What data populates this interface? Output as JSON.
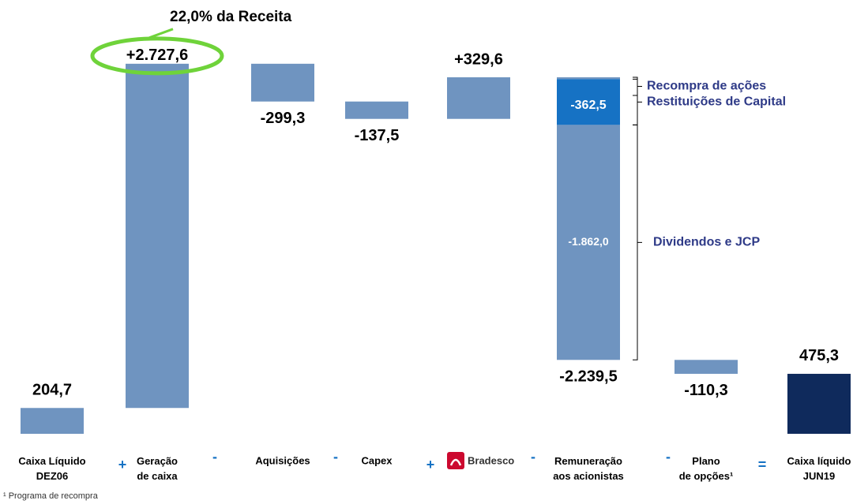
{
  "chart_data": {
    "type": "waterfall",
    "annotation": "22,0% da Receita",
    "footnote": "¹ Programa de recompra",
    "bars": [
      {
        "label": [
          "Caixa Líquido",
          "DEZ06"
        ],
        "operator": null,
        "value": 204.7,
        "value_label": "204,7",
        "color": "#6f94c0"
      },
      {
        "label": [
          "Geração",
          "de caixa"
        ],
        "operator": "+",
        "value": 2727.6,
        "value_label": "+2.727,6",
        "color": "#6f94c0"
      },
      {
        "label": [
          "Aquisições"
        ],
        "operator": "-",
        "value": -299.3,
        "value_label": "-299,3",
        "color": "#6f94c0"
      },
      {
        "label": [
          "Capex"
        ],
        "operator": "-",
        "value": -137.5,
        "value_label": "-137,5",
        "color": "#6f94c0"
      },
      {
        "label": [
          "Bradesco"
        ],
        "operator": "+",
        "value": 329.6,
        "value_label": "+329,6",
        "color": "#6f94c0"
      },
      {
        "label": [
          "Remuneração",
          "aos acionistas"
        ],
        "operator": "-",
        "value": -2239.5,
        "value_label": "-2.239,5",
        "color": "#6f94c0",
        "segments": [
          {
            "name": "Recompra de ações",
            "value": -15.0,
            "value_label": "-15,0",
            "color": "#6f94c0"
          },
          {
            "name": "Restituições de Capital",
            "value": -362.5,
            "value_label": "-362,5",
            "color": "#1672c4"
          },
          {
            "name": "Dividendos e JCP",
            "value": -1862.0,
            "value_label": "-1.862,0",
            "color": "#6f94c0"
          }
        ]
      },
      {
        "label": [
          "Plano",
          "de opções¹"
        ],
        "operator": "-",
        "value": -110.3,
        "value_label": "-110,3",
        "color": "#6f94c0"
      },
      {
        "label": [
          "Caixa líquido",
          "JUN19"
        ],
        "operator": "=",
        "value": 475.3,
        "value_label": "475,3",
        "color": "#0f2a5c"
      }
    ]
  }
}
